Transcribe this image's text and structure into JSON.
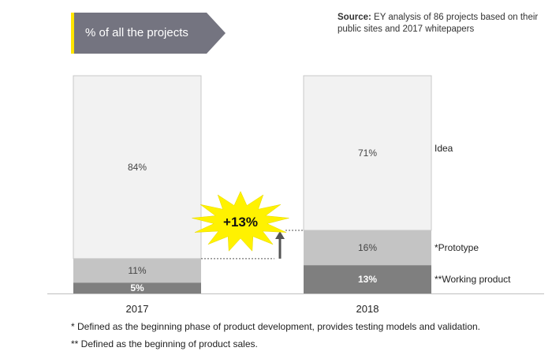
{
  "header": {
    "tag_label": "% of all the projects",
    "colors": {
      "tag_bg": "#747480",
      "tag_accent": "#FFE600"
    }
  },
  "source": {
    "label": "Source:",
    "text": "EY analysis of 86 projects based on their public sites and 2017 whitepapers"
  },
  "chart_data": {
    "type": "bar",
    "stacked": true,
    "normalized": true,
    "categories": [
      "2017",
      "2018"
    ],
    "series": [
      {
        "name": "**Working product",
        "values": [
          5,
          13
        ],
        "labels": [
          "5%",
          "13%"
        ],
        "color": "#7F7F7F"
      },
      {
        "name": "*Prototype",
        "values": [
          11,
          16
        ],
        "labels": [
          "11%",
          "16%"
        ],
        "color": "#C4C4C4"
      },
      {
        "name": "Idea",
        "values": [
          84,
          71
        ],
        "labels": [
          "84%",
          "71%"
        ],
        "color": "#F2F2F2"
      }
    ],
    "ylim": [
      0,
      100
    ],
    "legend_position": "right",
    "annotation": {
      "text": "+13%",
      "color": "#FFF200"
    }
  },
  "footnotes": {
    "prototype": "* Defined as the beginning phase of product development, provides testing models and validation.",
    "working": "** Defined as the beginning of product sales."
  }
}
